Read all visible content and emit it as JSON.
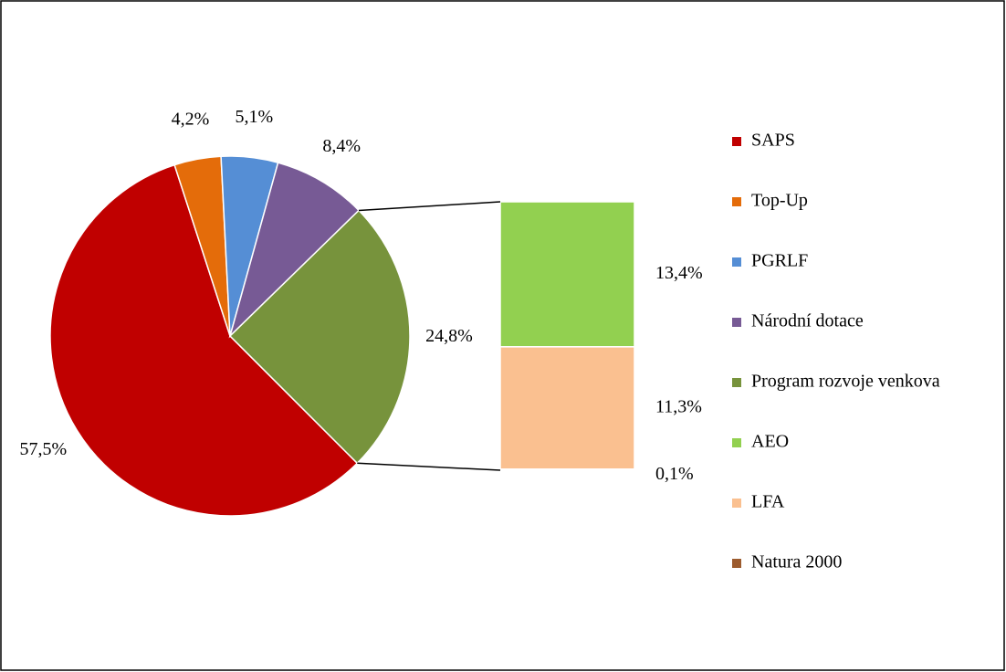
{
  "chart_data": {
    "type": "pie",
    "categories": [
      "SAPS",
      "Top-Up",
      "PGRLF",
      "Národní dotace",
      "Program rozvoje venkova"
    ],
    "values": [
      57.5,
      4.2,
      5.1,
      8.4,
      24.8
    ],
    "value_labels": [
      "57,5%",
      "4,2%",
      "5,1%",
      "8,4%",
      "24,8%"
    ],
    "colors": [
      "#c00000",
      "#e46c0a",
      "#558ed5",
      "#775a95",
      "#77933c"
    ],
    "breakdown": {
      "categories": [
        "AEO",
        "LFA",
        "Natura 2000"
      ],
      "values": [
        13.4,
        11.3,
        0.1
      ],
      "value_labels": [
        "13,4%",
        "11,3%",
        "0,1%"
      ],
      "colors": [
        "#92d050",
        "#fac090",
        "#9c5b2e"
      ]
    },
    "legend": "right"
  }
}
